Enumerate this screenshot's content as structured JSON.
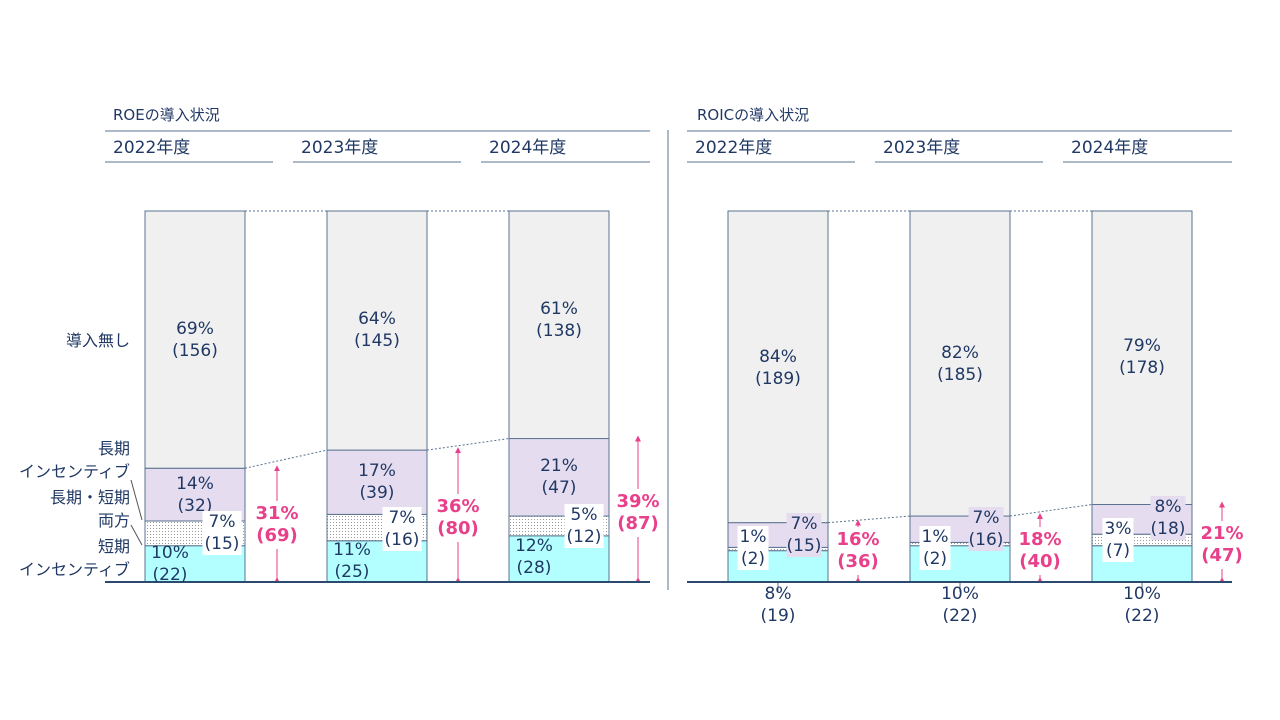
{
  "chart_data": [
    {
      "type": "bar",
      "stacked": true,
      "percent": true,
      "title": "ROEの導入状況",
      "categories": [
        "2022年度",
        "2023年度",
        "2024年度"
      ],
      "series": [
        {
          "name": "短期インセンティブ",
          "values": [
            22,
            25,
            28
          ],
          "labels": [
            "10%\n(22)",
            "11%\n(25)",
            "12%\n(28)"
          ]
        },
        {
          "name": "長期・短期両方",
          "values": [
            15,
            16,
            12
          ],
          "labels": [
            "7%\n(15)",
            "7%\n(16)",
            "5%\n(12)"
          ]
        },
        {
          "name": "長期インセンティブ",
          "values": [
            32,
            39,
            47
          ],
          "labels": [
            "14%\n(32)",
            "17%\n(39)",
            "21%\n(47)"
          ]
        },
        {
          "name": "導入無し",
          "values": [
            156,
            145,
            138
          ],
          "labels": [
            "69%\n(156)",
            "64%\n(145)",
            "61%\n(138)"
          ]
        }
      ],
      "totals": [
        "31%\n(69)",
        "36%\n(80)",
        "39%\n(87)"
      ]
    },
    {
      "type": "bar",
      "stacked": true,
      "percent": true,
      "title": "ROICの導入状況",
      "categories": [
        "2022年度",
        "2023年度",
        "2024年度"
      ],
      "series": [
        {
          "name": "短期インセンティブ",
          "values": [
            19,
            22,
            22
          ],
          "labels": [
            "8%\n(19)",
            "10%\n(22)",
            "10%\n(22)"
          ]
        },
        {
          "name": "長期・短期両方",
          "values": [
            2,
            2,
            7
          ],
          "labels": [
            "1%\n(2)",
            "1%\n(2)",
            "3%\n(7)"
          ]
        },
        {
          "name": "長期インセンティブ",
          "values": [
            15,
            16,
            18
          ],
          "labels": [
            "7%\n(15)",
            "7%\n(16)",
            "8%\n(18)"
          ]
        },
        {
          "name": "導入無し",
          "values": [
            189,
            185,
            178
          ],
          "labels": [
            "84%\n(189)",
            "82%\n(185)",
            "79%\n(178)"
          ]
        }
      ],
      "totals": [
        "16%\n(36)",
        "18%\n(40)",
        "21%\n(47)"
      ]
    }
  ],
  "legend": {
    "none": "導入無し",
    "long": "長期\nインセンティブ",
    "both": "長期・短期\n両方",
    "short": "短期\nインセンティブ"
  },
  "colors": {
    "none": "#f0f0f0",
    "long": "#e6dcf0",
    "both": "#ffffff",
    "short": "#b3ffff",
    "accent": "#e8408a",
    "text": "#203864"
  }
}
